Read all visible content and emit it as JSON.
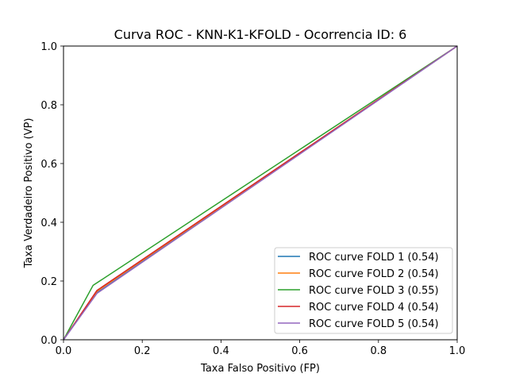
{
  "chart_data": {
    "type": "line",
    "title": "Curva ROC - KNN-K1-KFOLD - Ocorrencia ID: 6",
    "xlabel": "Taxa Falso Positivo (FP)",
    "ylabel": "Taxa Verdadeiro Positivo (VP)",
    "xlim": [
      0.0,
      1.0
    ],
    "ylim": [
      0.0,
      1.0
    ],
    "xticks": [
      "0.0",
      "0.2",
      "0.4",
      "0.6",
      "0.8",
      "1.0"
    ],
    "yticks": [
      "0.0",
      "0.2",
      "0.4",
      "0.6",
      "0.8",
      "1.0"
    ],
    "grid": false,
    "legend_position": "lower-right",
    "series": [
      {
        "name": "ROC curve FOLD 1 (0.54)",
        "color": "#1f77b4",
        "x": [
          0.0,
          0.085,
          1.0
        ],
        "y": [
          0.0,
          0.16,
          1.0
        ]
      },
      {
        "name": "ROC curve FOLD 2 (0.54)",
        "color": "#ff7f0e",
        "x": [
          0.0,
          0.085,
          1.0
        ],
        "y": [
          0.0,
          0.165,
          1.0
        ]
      },
      {
        "name": "ROC curve FOLD 3 (0.55)",
        "color": "#2ca02c",
        "x": [
          0.0,
          0.075,
          1.0
        ],
        "y": [
          0.0,
          0.185,
          1.0
        ]
      },
      {
        "name": "ROC curve FOLD 4 (0.54)",
        "color": "#d62728",
        "x": [
          0.0,
          0.085,
          1.0
        ],
        "y": [
          0.0,
          0.168,
          1.0
        ]
      },
      {
        "name": "ROC curve FOLD 5 (0.54)",
        "color": "#9467bd",
        "x": [
          0.0,
          0.085,
          1.0
        ],
        "y": [
          0.0,
          0.158,
          1.0
        ]
      }
    ]
  }
}
